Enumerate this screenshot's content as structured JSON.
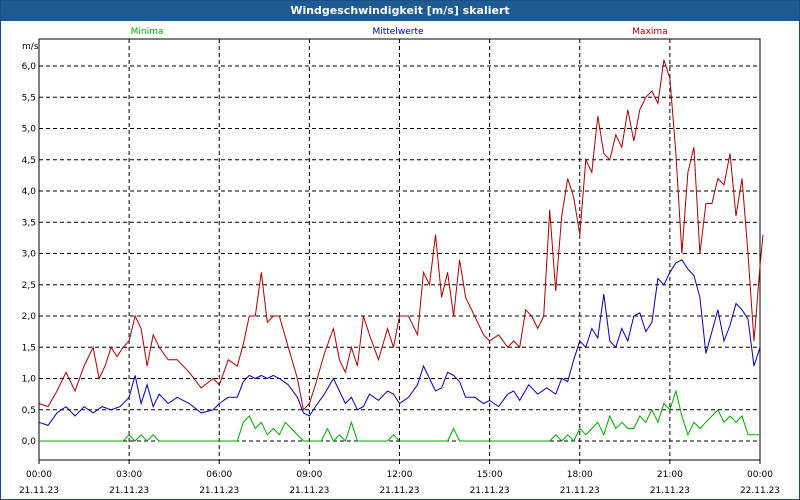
{
  "window": {
    "title": "Windgeschwindigkeit [m/s] skaliert"
  },
  "chart_data": {
    "type": "line",
    "title": "Windgeschwindigkeit [m/s] skaliert",
    "ylabel": "m/s",
    "ylim": [
      -0.3,
      6.3
    ],
    "grid": true,
    "legend_placement": "top",
    "x_ticks": [
      {
        "time": "00:00",
        "date": "21.11.23"
      },
      {
        "time": "03:00",
        "date": "21.11.23"
      },
      {
        "time": "06:00",
        "date": "21.11.23"
      },
      {
        "time": "09:00",
        "date": "21.11.23"
      },
      {
        "time": "12:00",
        "date": "21.11.23"
      },
      {
        "time": "15:00",
        "date": "21.11.23"
      },
      {
        "time": "18:00",
        "date": "21.11.23"
      },
      {
        "time": "21:00",
        "date": "21.11.23"
      },
      {
        "time": "00:00",
        "date": "22.11.23"
      }
    ],
    "y_ticks": [
      "0,0",
      "0,5",
      "1,0",
      "1,5",
      "2,0",
      "2,5",
      "3,0",
      "3,5",
      "4,0",
      "4,5",
      "5,0",
      "5,5",
      "6,0"
    ],
    "x_hours_range": [
      0,
      24
    ],
    "series": [
      {
        "name": "Minima",
        "color": "#00aa00",
        "points": [
          [
            0,
            0
          ],
          [
            1,
            0
          ],
          [
            2,
            0
          ],
          [
            2.8,
            0
          ],
          [
            3.0,
            0.1
          ],
          [
            3.2,
            0
          ],
          [
            3.4,
            0.1
          ],
          [
            3.6,
            0
          ],
          [
            3.8,
            0.1
          ],
          [
            4.0,
            0
          ],
          [
            4.6,
            0
          ],
          [
            5,
            0
          ],
          [
            6,
            0
          ],
          [
            6.6,
            0
          ],
          [
            6.8,
            0.3
          ],
          [
            7.0,
            0.4
          ],
          [
            7.2,
            0.2
          ],
          [
            7.4,
            0.3
          ],
          [
            7.6,
            0.1
          ],
          [
            7.8,
            0.2
          ],
          [
            8.0,
            0.1
          ],
          [
            8.2,
            0.3
          ],
          [
            8.4,
            0.2
          ],
          [
            8.6,
            0.1
          ],
          [
            8.8,
            0
          ],
          [
            9,
            0
          ],
          [
            9.4,
            0
          ],
          [
            9.6,
            0.2
          ],
          [
            9.8,
            0
          ],
          [
            10.0,
            0.1
          ],
          [
            10.2,
            0
          ],
          [
            10.4,
            0.3
          ],
          [
            10.6,
            0
          ],
          [
            11,
            0
          ],
          [
            11.6,
            0
          ],
          [
            11.8,
            0.1
          ],
          [
            12.0,
            0
          ],
          [
            13,
            0
          ],
          [
            13.6,
            0
          ],
          [
            13.8,
            0.2
          ],
          [
            14.0,
            0
          ],
          [
            14.2,
            0
          ],
          [
            15,
            0
          ],
          [
            16,
            0
          ],
          [
            17,
            0
          ],
          [
            17.2,
            0.1
          ],
          [
            17.4,
            0
          ],
          [
            17.6,
            0.1
          ],
          [
            17.8,
            0
          ],
          [
            18.0,
            0.2
          ],
          [
            18.2,
            0.1
          ],
          [
            18.4,
            0.2
          ],
          [
            18.6,
            0.3
          ],
          [
            18.8,
            0.1
          ],
          [
            19.0,
            0.4
          ],
          [
            19.2,
            0.2
          ],
          [
            19.4,
            0.3
          ],
          [
            19.6,
            0.2
          ],
          [
            19.8,
            0.2
          ],
          [
            20.0,
            0.4
          ],
          [
            20.2,
            0.3
          ],
          [
            20.4,
            0.5
          ],
          [
            20.6,
            0.3
          ],
          [
            20.8,
            0.6
          ],
          [
            21.0,
            0.5
          ],
          [
            21.2,
            0.8
          ],
          [
            21.4,
            0.4
          ],
          [
            21.6,
            0.1
          ],
          [
            21.8,
            0.3
          ],
          [
            22.0,
            0.2
          ],
          [
            22.2,
            0.3
          ],
          [
            22.4,
            0.4
          ],
          [
            22.6,
            0.5
          ],
          [
            22.8,
            0.3
          ],
          [
            23.0,
            0.4
          ],
          [
            23.2,
            0.3
          ],
          [
            23.4,
            0.4
          ],
          [
            23.6,
            0.1
          ],
          [
            23.8,
            0.1
          ],
          [
            24,
            0.1
          ]
        ]
      },
      {
        "name": "Mittelwerte",
        "color": "#0000aa",
        "points": [
          [
            0,
            0.3
          ],
          [
            0.3,
            0.25
          ],
          [
            0.6,
            0.45
          ],
          [
            0.9,
            0.55
          ],
          [
            1.2,
            0.4
          ],
          [
            1.5,
            0.55
          ],
          [
            1.8,
            0.45
          ],
          [
            2.1,
            0.55
          ],
          [
            2.4,
            0.5
          ],
          [
            2.7,
            0.55
          ],
          [
            3.0,
            0.7
          ],
          [
            3.2,
            1.05
          ],
          [
            3.4,
            0.6
          ],
          [
            3.6,
            0.9
          ],
          [
            3.8,
            0.55
          ],
          [
            4.0,
            0.75
          ],
          [
            4.3,
            0.6
          ],
          [
            4.6,
            0.7
          ],
          [
            5.0,
            0.6
          ],
          [
            5.4,
            0.45
          ],
          [
            5.8,
            0.5
          ],
          [
            6.0,
            0.6
          ],
          [
            6.3,
            0.7
          ],
          [
            6.6,
            0.7
          ],
          [
            6.8,
            0.95
          ],
          [
            7.0,
            1.05
          ],
          [
            7.2,
            1.0
          ],
          [
            7.4,
            1.05
          ],
          [
            7.6,
            1.0
          ],
          [
            7.8,
            1.05
          ],
          [
            8.0,
            1.0
          ],
          [
            8.3,
            0.9
          ],
          [
            8.6,
            0.7
          ],
          [
            8.8,
            0.45
          ],
          [
            9.0,
            0.4
          ],
          [
            9.2,
            0.55
          ],
          [
            9.5,
            0.75
          ],
          [
            9.8,
            1.0
          ],
          [
            10.0,
            0.8
          ],
          [
            10.2,
            0.6
          ],
          [
            10.4,
            0.7
          ],
          [
            10.6,
            0.5
          ],
          [
            10.8,
            0.55
          ],
          [
            11.0,
            0.75
          ],
          [
            11.3,
            0.65
          ],
          [
            11.6,
            0.8
          ],
          [
            11.8,
            0.75
          ],
          [
            12.0,
            0.6
          ],
          [
            12.3,
            0.7
          ],
          [
            12.6,
            0.9
          ],
          [
            12.8,
            1.2
          ],
          [
            13.0,
            1.0
          ],
          [
            13.2,
            0.8
          ],
          [
            13.4,
            0.85
          ],
          [
            13.6,
            1.1
          ],
          [
            13.8,
            1.05
          ],
          [
            14.0,
            0.95
          ],
          [
            14.2,
            0.7
          ],
          [
            14.5,
            0.7
          ],
          [
            14.8,
            0.6
          ],
          [
            15.0,
            0.65
          ],
          [
            15.3,
            0.55
          ],
          [
            15.6,
            0.75
          ],
          [
            15.8,
            0.8
          ],
          [
            16.0,
            0.65
          ],
          [
            16.3,
            0.9
          ],
          [
            16.6,
            0.75
          ],
          [
            16.9,
            0.85
          ],
          [
            17.2,
            0.75
          ],
          [
            17.4,
            1.0
          ],
          [
            17.6,
            0.95
          ],
          [
            17.8,
            1.3
          ],
          [
            18.0,
            1.6
          ],
          [
            18.2,
            1.5
          ],
          [
            18.4,
            1.8
          ],
          [
            18.6,
            1.65
          ],
          [
            18.8,
            2.35
          ],
          [
            19.0,
            1.6
          ],
          [
            19.2,
            1.5
          ],
          [
            19.4,
            1.8
          ],
          [
            19.6,
            1.6
          ],
          [
            19.8,
            2.0
          ],
          [
            20.0,
            2.05
          ],
          [
            20.2,
            1.75
          ],
          [
            20.4,
            1.9
          ],
          [
            20.6,
            2.6
          ],
          [
            20.8,
            2.5
          ],
          [
            21.0,
            2.7
          ],
          [
            21.2,
            2.85
          ],
          [
            21.4,
            2.9
          ],
          [
            21.6,
            2.75
          ],
          [
            21.8,
            2.65
          ],
          [
            22.0,
            2.3
          ],
          [
            22.2,
            1.4
          ],
          [
            22.4,
            1.75
          ],
          [
            22.6,
            2.1
          ],
          [
            22.8,
            1.6
          ],
          [
            23.0,
            1.85
          ],
          [
            23.2,
            2.2
          ],
          [
            23.4,
            2.1
          ],
          [
            23.6,
            1.95
          ],
          [
            23.8,
            1.2
          ],
          [
            24.0,
            1.5
          ]
        ]
      },
      {
        "name": "Maxima",
        "color": "#aa0000",
        "points": [
          [
            0,
            0.6
          ],
          [
            0.3,
            0.55
          ],
          [
            0.6,
            0.8
          ],
          [
            0.9,
            1.1
          ],
          [
            1.2,
            0.8
          ],
          [
            1.5,
            1.2
          ],
          [
            1.8,
            1.5
          ],
          [
            2.0,
            1.0
          ],
          [
            2.2,
            1.2
          ],
          [
            2.4,
            1.5
          ],
          [
            2.6,
            1.35
          ],
          [
            2.8,
            1.5
          ],
          [
            3.0,
            1.6
          ],
          [
            3.2,
            2.0
          ],
          [
            3.4,
            1.8
          ],
          [
            3.6,
            1.2
          ],
          [
            3.8,
            1.7
          ],
          [
            4.0,
            1.5
          ],
          [
            4.3,
            1.3
          ],
          [
            4.6,
            1.3
          ],
          [
            5.0,
            1.1
          ],
          [
            5.4,
            0.85
          ],
          [
            5.8,
            1.0
          ],
          [
            6.0,
            0.9
          ],
          [
            6.3,
            1.3
          ],
          [
            6.6,
            1.2
          ],
          [
            6.8,
            1.55
          ],
          [
            7.0,
            2.0
          ],
          [
            7.2,
            2.0
          ],
          [
            7.4,
            2.7
          ],
          [
            7.6,
            1.9
          ],
          [
            7.8,
            2.0
          ],
          [
            8.0,
            2.0
          ],
          [
            8.3,
            1.5
          ],
          [
            8.6,
            1.0
          ],
          [
            8.8,
            0.5
          ],
          [
            9.0,
            0.6
          ],
          [
            9.2,
            0.9
          ],
          [
            9.5,
            1.4
          ],
          [
            9.8,
            1.8
          ],
          [
            10.0,
            1.3
          ],
          [
            10.2,
            1.1
          ],
          [
            10.4,
            1.5
          ],
          [
            10.6,
            1.2
          ],
          [
            10.8,
            2.0
          ],
          [
            11.0,
            1.7
          ],
          [
            11.3,
            1.3
          ],
          [
            11.6,
            1.8
          ],
          [
            11.8,
            1.5
          ],
          [
            12.0,
            2.0
          ],
          [
            12.3,
            2.0
          ],
          [
            12.6,
            1.7
          ],
          [
            12.8,
            2.7
          ],
          [
            13.0,
            2.5
          ],
          [
            13.2,
            3.3
          ],
          [
            13.4,
            2.3
          ],
          [
            13.6,
            2.7
          ],
          [
            13.8,
            2.0
          ],
          [
            14.0,
            2.9
          ],
          [
            14.2,
            2.3
          ],
          [
            14.5,
            2.0
          ],
          [
            14.8,
            1.7
          ],
          [
            15.0,
            1.6
          ],
          [
            15.3,
            1.7
          ],
          [
            15.6,
            1.5
          ],
          [
            15.8,
            1.6
          ],
          [
            16.0,
            1.5
          ],
          [
            16.2,
            2.1
          ],
          [
            16.4,
            2.0
          ],
          [
            16.6,
            1.8
          ],
          [
            16.8,
            2.0
          ],
          [
            17.0,
            3.7
          ],
          [
            17.2,
            2.4
          ],
          [
            17.4,
            3.6
          ],
          [
            17.6,
            4.2
          ],
          [
            17.8,
            3.9
          ],
          [
            18.0,
            3.3
          ],
          [
            18.2,
            4.5
          ],
          [
            18.4,
            4.3
          ],
          [
            18.6,
            5.2
          ],
          [
            18.8,
            4.6
          ],
          [
            19.0,
            4.5
          ],
          [
            19.2,
            4.9
          ],
          [
            19.4,
            4.7
          ],
          [
            19.6,
            5.3
          ],
          [
            19.8,
            4.8
          ],
          [
            20.0,
            5.3
          ],
          [
            20.2,
            5.5
          ],
          [
            20.4,
            5.6
          ],
          [
            20.6,
            5.4
          ],
          [
            20.8,
            6.1
          ],
          [
            21.0,
            5.8
          ],
          [
            21.2,
            4.6
          ],
          [
            21.4,
            3.0
          ],
          [
            21.6,
            4.3
          ],
          [
            21.8,
            4.7
          ],
          [
            22.0,
            3.0
          ],
          [
            22.2,
            3.8
          ],
          [
            22.4,
            3.8
          ],
          [
            22.6,
            4.2
          ],
          [
            22.8,
            4.1
          ],
          [
            23.0,
            4.6
          ],
          [
            23.2,
            3.6
          ],
          [
            23.4,
            4.2
          ],
          [
            23.6,
            3.0
          ],
          [
            23.8,
            1.6
          ],
          [
            24.0,
            2.8
          ],
          [
            24.1,
            3.3
          ]
        ]
      }
    ]
  }
}
